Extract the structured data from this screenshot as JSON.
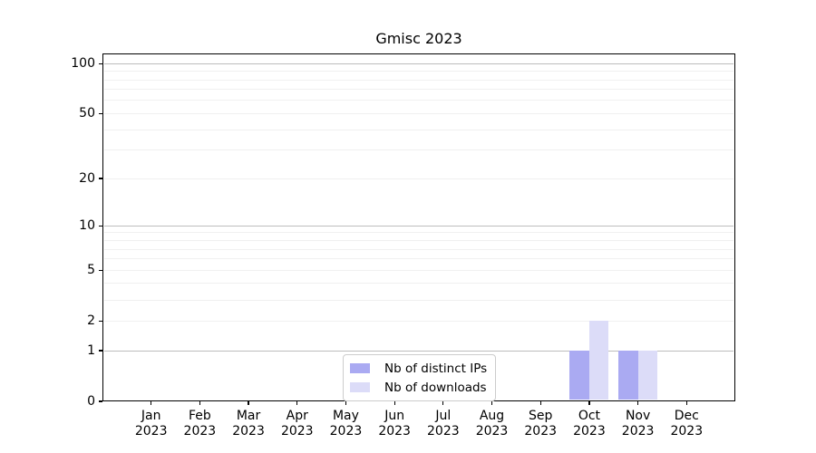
{
  "chart_data": {
    "type": "bar",
    "title": "Gmisc 2023",
    "categories": [
      "Jan",
      "Feb",
      "Mar",
      "Apr",
      "May",
      "Jun",
      "Jul",
      "Aug",
      "Sep",
      "Oct",
      "Nov",
      "Dec"
    ],
    "x_tick_second_line": "2023",
    "series": [
      {
        "name": "Nb of distinct IPs",
        "color": "#aaaaf2",
        "values": [
          0,
          0,
          0,
          0,
          0,
          0,
          0,
          0,
          0,
          1,
          1,
          0
        ]
      },
      {
        "name": "Nb of downloads",
        "color": "#dcdcf8",
        "values": [
          0,
          0,
          0,
          0,
          0,
          0,
          0,
          0,
          0,
          2,
          1,
          0
        ]
      }
    ],
    "y_ticks": [
      0,
      1,
      2,
      5,
      10,
      20,
      50,
      100
    ],
    "y_scale": "log1p",
    "y_max": 115,
    "ylim": [
      0,
      115
    ],
    "grid": {
      "major": [
        1,
        10,
        100
      ],
      "minor": [
        2,
        3,
        4,
        5,
        6,
        7,
        8,
        9,
        20,
        30,
        40,
        50,
        60,
        70,
        80,
        90
      ]
    },
    "legend_position": "lower center",
    "colors": {
      "grid_major": "#bdbdbd",
      "grid_minor": "#f0f0f0",
      "axis": "#000000",
      "background": "#ffffff"
    }
  }
}
